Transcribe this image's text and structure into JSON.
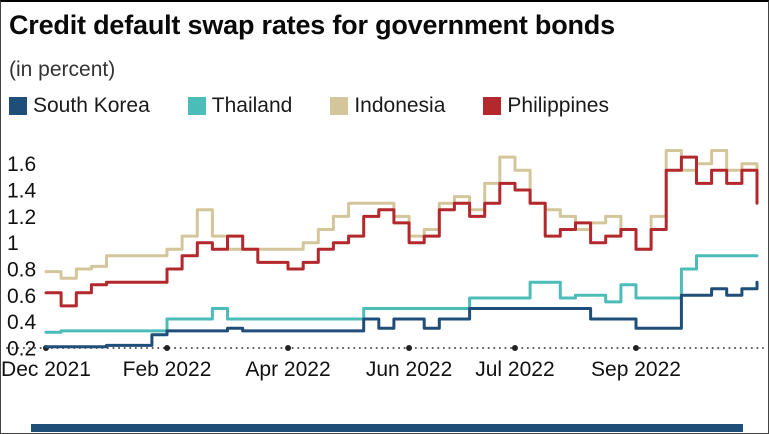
{
  "title": "Credit default swap rates for government bonds",
  "subtitle": "(in percent)",
  "colors": {
    "south_korea": "#1f4e79",
    "thailand": "#4cbcb9",
    "indonesia": "#d4c69b",
    "philippines": "#b3282d",
    "footer_bar": "#1f4e79",
    "axis_dots": "#222222"
  },
  "legend": [
    {
      "label": "South Korea",
      "color": "#1f4e79"
    },
    {
      "label": "Thailand",
      "color": "#4cbcb9"
    },
    {
      "label": "Indonesia",
      "color": "#d4c69b"
    },
    {
      "label": "Philippines",
      "color": "#b3282d"
    }
  ],
  "chart_data": {
    "type": "line",
    "title": "Credit default swap rates for government bonds",
    "ylabel": "(in percent)",
    "x_unit": "weekly observations, Dec 2021 - Nov 2022",
    "x_tick_indices": [
      0,
      8,
      16,
      24,
      31,
      39
    ],
    "x_tick_labels": [
      "Dec 2021",
      "Feb 2022",
      "Apr 2022",
      "Jun 2022",
      "Jul 2022",
      "Sep 2022"
    ],
    "y_ticks": [
      0.2,
      0.4,
      0.6,
      0.8,
      1,
      1.2,
      1.4,
      1.6
    ],
    "ylim": [
      0.2,
      1.78
    ],
    "grid": "none",
    "legend_position": "top",
    "interpolation": "step-after",
    "series": [
      {
        "name": "Indonesia",
        "color": "#d4c69b",
        "values": [
          0.78,
          0.73,
          0.8,
          0.82,
          0.9,
          0.9,
          0.9,
          0.9,
          0.95,
          1.05,
          1.25,
          1.05,
          0.95,
          0.95,
          0.95,
          0.95,
          0.95,
          1.0,
          1.1,
          1.2,
          1.3,
          1.3,
          1.3,
          1.2,
          1.05,
          1.1,
          1.3,
          1.35,
          1.25,
          1.45,
          1.65,
          1.55,
          1.3,
          1.25,
          1.2,
          1.1,
          1.15,
          1.2,
          1.1,
          0.95,
          1.2,
          1.7,
          1.55,
          1.6,
          1.7,
          1.55,
          1.6,
          1.4
        ]
      },
      {
        "name": "Philippines",
        "color": "#b3282d",
        "values": [
          0.62,
          0.52,
          0.62,
          0.68,
          0.7,
          0.7,
          0.7,
          0.7,
          0.8,
          0.9,
          1.0,
          0.95,
          1.05,
          0.95,
          0.85,
          0.85,
          0.8,
          0.85,
          0.95,
          1.0,
          1.05,
          1.2,
          1.25,
          1.15,
          1.0,
          1.05,
          1.25,
          1.3,
          1.2,
          1.3,
          1.45,
          1.4,
          1.3,
          1.05,
          1.1,
          1.15,
          1.0,
          1.05,
          1.1,
          0.95,
          1.1,
          1.55,
          1.65,
          1.45,
          1.55,
          1.45,
          1.55,
          1.3
        ]
      },
      {
        "name": "Thailand",
        "color": "#4cbcb9",
        "values": [
          0.32,
          0.33,
          0.33,
          0.33,
          0.33,
          0.33,
          0.33,
          0.33,
          0.42,
          0.42,
          0.42,
          0.5,
          0.42,
          0.42,
          0.42,
          0.42,
          0.42,
          0.42,
          0.42,
          0.42,
          0.42,
          0.5,
          0.5,
          0.5,
          0.5,
          0.5,
          0.5,
          0.5,
          0.58,
          0.58,
          0.58,
          0.58,
          0.7,
          0.7,
          0.58,
          0.6,
          0.6,
          0.55,
          0.68,
          0.58,
          0.58,
          0.58,
          0.8,
          0.9,
          0.9,
          0.9,
          0.9,
          0.9
        ]
      },
      {
        "name": "South Korea",
        "color": "#1f4e79",
        "values": [
          0.21,
          0.21,
          0.21,
          0.21,
          0.22,
          0.22,
          0.22,
          0.3,
          0.33,
          0.33,
          0.33,
          0.33,
          0.35,
          0.33,
          0.33,
          0.33,
          0.33,
          0.33,
          0.33,
          0.33,
          0.33,
          0.42,
          0.35,
          0.42,
          0.42,
          0.35,
          0.42,
          0.42,
          0.5,
          0.5,
          0.5,
          0.5,
          0.5,
          0.5,
          0.5,
          0.5,
          0.42,
          0.42,
          0.42,
          0.35,
          0.35,
          0.35,
          0.6,
          0.6,
          0.65,
          0.6,
          0.65,
          0.7
        ]
      }
    ]
  }
}
